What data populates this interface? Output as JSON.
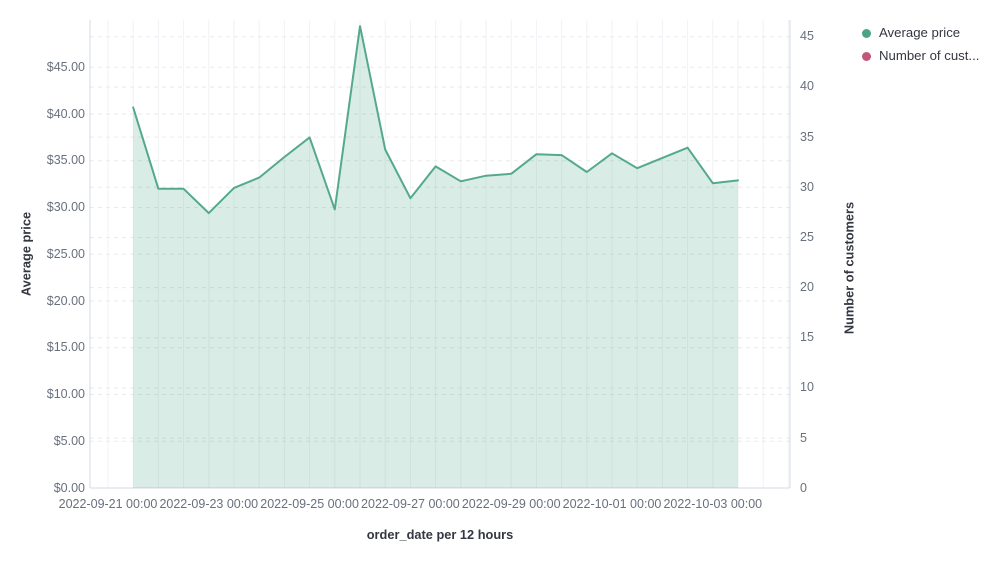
{
  "page": {
    "background": "#ffffff"
  },
  "legend": {
    "position": "top-right",
    "items": [
      {
        "label": "Average price",
        "color": "#4da389"
      },
      {
        "label": "Number of cust...",
        "color": "#c2557a"
      }
    ]
  },
  "chart_data": {
    "type": "area",
    "title": "",
    "xlabel": "order_date per 12 hours",
    "ylabel_left": "Average price",
    "ylabel_right": "Number of customers",
    "x": [
      "2022-09-21 12:00",
      "2022-09-22 00:00",
      "2022-09-22 12:00",
      "2022-09-23 00:00",
      "2022-09-23 12:00",
      "2022-09-24 00:00",
      "2022-09-24 12:00",
      "2022-09-25 00:00",
      "2022-09-25 12:00",
      "2022-09-26 00:00",
      "2022-09-26 12:00",
      "2022-09-27 00:00",
      "2022-09-27 12:00",
      "2022-09-28 00:00",
      "2022-09-28 12:00",
      "2022-09-29 00:00",
      "2022-09-29 12:00",
      "2022-09-30 00:00",
      "2022-09-30 12:00",
      "2022-10-01 00:00",
      "2022-10-01 12:00",
      "2022-10-02 00:00",
      "2022-10-02 12:00",
      "2022-10-03 00:00",
      "2022-10-03 12:00"
    ],
    "series": [
      {
        "name": "Average price",
        "axis": "left",
        "color": "#54a98c",
        "fill": "rgba(84,169,140,0.22)",
        "values": [
          40.7,
          32.0,
          32.0,
          29.4,
          32.1,
          33.2,
          35.4,
          37.5,
          29.8,
          49.4,
          36.2,
          31.0,
          34.4,
          32.8,
          33.4,
          33.6,
          35.7,
          35.6,
          33.8,
          35.8,
          34.2,
          35.3,
          36.4,
          32.6,
          32.9
        ]
      },
      {
        "name": "Number of customers",
        "axis": "right",
        "color": "#c2557a",
        "values": []
      }
    ],
    "left_axis": {
      "tick_labels": [
        "$0.00",
        "$5.00",
        "$10.00",
        "$15.00",
        "$20.00",
        "$25.00",
        "$30.00",
        "$35.00",
        "$40.00",
        "$45.00"
      ],
      "min": 0,
      "max": 50,
      "tick_step": 5
    },
    "right_axis": {
      "tick_labels": [
        "0",
        "5",
        "10",
        "15",
        "20",
        "25",
        "30",
        "35",
        "40",
        "45"
      ],
      "min": 0,
      "max": 46.6,
      "tick_step": 5
    },
    "x_tick_labels": [
      "2022-09-21 00:00",
      "2022-09-23 00:00",
      "2022-09-25 00:00",
      "2022-09-27 00:00",
      "2022-09-29 00:00",
      "2022-10-01 00:00",
      "2022-10-03 00:00"
    ],
    "grid": true,
    "legend_position": "top-right",
    "grid_color_vertical": "#f1f2f5",
    "grid_color_horizontal": "#e7eaee",
    "axis_line_color": "#d3d8e0",
    "tick_text_color": "#69707d",
    "title_text_color": "#343741"
  }
}
